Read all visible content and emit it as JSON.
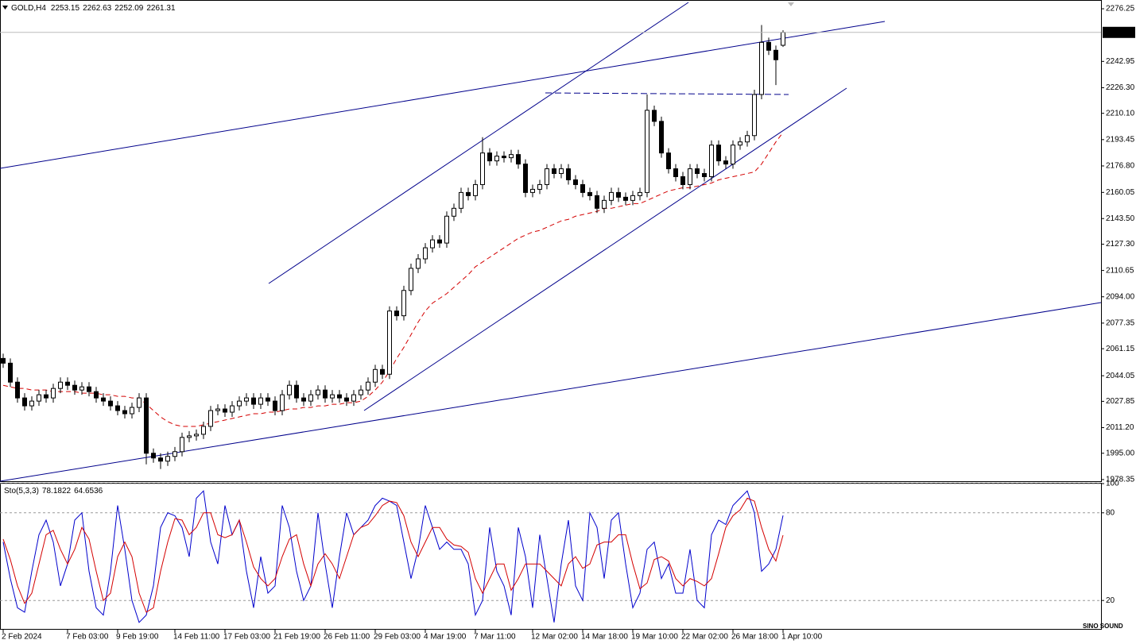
{
  "chart_data": [
    {
      "type": "candlestick",
      "title": "GOLD,H4",
      "categories": [
        "2 Feb 2024",
        null,
        null,
        null,
        null,
        null,
        null,
        null,
        null,
        "7 Feb 03:00",
        null,
        null,
        null,
        null,
        null,
        null,
        "9 Feb 19:00",
        null,
        null,
        null,
        null,
        null,
        null,
        null,
        "14 Feb 11:00",
        null,
        null,
        null,
        null,
        null,
        null,
        "17 Feb 03:00",
        null,
        null,
        null,
        null,
        null,
        null,
        "21 Feb 19:00",
        null,
        null,
        null,
        null,
        null,
        null,
        "26 Feb 11:00",
        null,
        null,
        null,
        null,
        null,
        null,
        "29 Feb 03:00",
        null,
        null,
        null,
        null,
        null,
        null,
        "4 Mar 19:00",
        null,
        null,
        null,
        null,
        null,
        null,
        "7 Mar 11:00",
        null,
        null,
        null,
        null,
        null,
        null,
        null,
        "12 Mar 02:00",
        null,
        null,
        null,
        null,
        null,
        null,
        "14 Mar 18:00",
        null,
        null,
        null,
        null,
        null,
        null,
        "19 Mar 10:00",
        null,
        null,
        null,
        null,
        null,
        null,
        "22 Mar 02:00",
        null,
        null,
        null,
        null,
        null,
        null,
        "26 Mar 18:00",
        null,
        null,
        null,
        null,
        null,
        null,
        "1 Apr 10:00"
      ],
      "open": [
        2055,
        2052,
        2040,
        2030,
        2025,
        2028,
        2032,
        2030,
        2036,
        2040,
        2038,
        2035,
        2037,
        2034,
        2030,
        2028,
        2025,
        2022,
        2020,
        2024,
        2030,
        1995,
        1992,
        1990,
        1993,
        1996,
        2005,
        2006,
        2007,
        2012,
        2022,
        2023,
        2021,
        2025,
        2028,
        2030,
        2026,
        2030,
        2028,
        2022,
        2032,
        2038,
        2030,
        2028,
        2032,
        2035,
        2030,
        2032,
        2030,
        2028,
        2032,
        2035,
        2040,
        2048,
        2045,
        2085,
        2082,
        2098,
        2112,
        2118,
        2125,
        2130,
        2128,
        2145,
        2150,
        2160,
        2158,
        2165,
        2185,
        2180,
        2183,
        2182,
        2184,
        2178,
        2160,
        2162,
        2165,
        2175,
        2172,
        2175,
        2168,
        2165,
        2160,
        2158,
        2150,
        2155,
        2160,
        2157,
        2155,
        2158,
        2160,
        2212,
        2205,
        2185,
        2175,
        2170,
        2165,
        2175,
        2172,
        2170,
        2190,
        2180,
        2178,
        2190,
        2192,
        2196,
        2222,
        2255,
        2250,
        2253.15
      ],
      "high": [
        2058,
        2055,
        2043,
        2033,
        2031,
        2035,
        2035,
        2039,
        2043,
        2043,
        2041,
        2040,
        2040,
        2037,
        2033,
        2031,
        2028,
        2025,
        2027,
        2033,
        2033,
        1998,
        1995,
        1996,
        1999,
        2008,
        2009,
        2010,
        2015,
        2025,
        2026,
        2026,
        2028,
        2031,
        2033,
        2033,
        2033,
        2033,
        2031,
        2035,
        2041,
        2041,
        2033,
        2035,
        2038,
        2038,
        2035,
        2035,
        2033,
        2035,
        2038,
        2043,
        2051,
        2051,
        2088,
        2088,
        2101,
        2115,
        2121,
        2128,
        2133,
        2133,
        2148,
        2153,
        2163,
        2163,
        2168,
        2195,
        2188,
        2186,
        2186,
        2187,
        2187,
        2181,
        2165,
        2168,
        2178,
        2178,
        2178,
        2178,
        2171,
        2168,
        2163,
        2161,
        2158,
        2163,
        2163,
        2160,
        2161,
        2163,
        2222,
        2215,
        2208,
        2188,
        2178,
        2173,
        2178,
        2178,
        2175,
        2193,
        2193,
        2183,
        2193,
        2195,
        2199,
        2225,
        2266,
        2258,
        2253,
        2262.63
      ],
      "low": [
        2049,
        2037,
        2027,
        2022,
        2022,
        2025,
        2027,
        2027,
        2033,
        2035,
        2032,
        2032,
        2031,
        2027,
        2025,
        2022,
        2019,
        2017,
        2017,
        2021,
        1988,
        1989,
        1985,
        1987,
        1990,
        1993,
        2002,
        2003,
        2004,
        2009,
        2019,
        2018,
        2018,
        2022,
        2025,
        2023,
        2023,
        2025,
        2019,
        2019,
        2029,
        2027,
        2025,
        2025,
        2029,
        2027,
        2027,
        2027,
        2025,
        2025,
        2029,
        2032,
        2037,
        2042,
        2042,
        2079,
        2079,
        2095,
        2109,
        2115,
        2122,
        2125,
        2125,
        2142,
        2147,
        2155,
        2155,
        2162,
        2177,
        2177,
        2179,
        2179,
        2175,
        2157,
        2157,
        2159,
        2162,
        2169,
        2169,
        2165,
        2162,
        2157,
        2155,
        2147,
        2147,
        2152,
        2154,
        2152,
        2152,
        2155,
        2157,
        2202,
        2182,
        2172,
        2167,
        2162,
        2162,
        2169,
        2167,
        2167,
        2177,
        2175,
        2175,
        2187,
        2189,
        2193,
        2219,
        2247,
        2228,
        2252.09
      ],
      "close": [
        2052,
        2040,
        2030,
        2025,
        2028,
        2032,
        2030,
        2036,
        2040,
        2038,
        2035,
        2037,
        2034,
        2030,
        2028,
        2025,
        2022,
        2020,
        2024,
        2030,
        1995,
        1992,
        1990,
        1993,
        1996,
        2005,
        2006,
        2007,
        2012,
        2022,
        2023,
        2021,
        2025,
        2028,
        2030,
        2026,
        2030,
        2028,
        2022,
        2032,
        2038,
        2030,
        2028,
        2032,
        2035,
        2030,
        2032,
        2030,
        2028,
        2032,
        2035,
        2040,
        2048,
        2045,
        2085,
        2082,
        2098,
        2112,
        2118,
        2125,
        2130,
        2128,
        2145,
        2150,
        2160,
        2158,
        2165,
        2185,
        2180,
        2183,
        2182,
        2184,
        2178,
        2160,
        2162,
        2165,
        2175,
        2172,
        2175,
        2168,
        2165,
        2160,
        2158,
        2150,
        2155,
        2160,
        2157,
        2155,
        2158,
        2160,
        2212,
        2205,
        2185,
        2175,
        2170,
        2165,
        2175,
        2172,
        2170,
        2190,
        2180,
        2178,
        2190,
        2192,
        2196,
        2222,
        2255,
        2250,
        2244,
        2261.31
      ],
      "ma": {
        "color": "#d40000",
        "values": [
          2038,
          2037,
          2036,
          2036,
          2035,
          2035,
          2035,
          2034,
          2034,
          2034,
          2034,
          2033,
          2033,
          2033,
          2032,
          2032,
          2031,
          2031,
          2030,
          2030,
          2026,
          2022,
          2018,
          2015,
          2013,
          2012,
          2012,
          2012,
          2013,
          2014,
          2015,
          2016,
          2017,
          2018,
          2019,
          2020,
          2020,
          2021,
          2021,
          2022,
          2023,
          2023,
          2024,
          2024,
          2025,
          2025,
          2026,
          2026,
          2027,
          2027,
          2028,
          2031,
          2035,
          2040,
          2047,
          2055,
          2062,
          2070,
          2078,
          2085,
          2090,
          2093,
          2096,
          2100,
          2104,
          2108,
          2113,
          2116,
          2119,
          2122,
          2125,
          2128,
          2131,
          2133,
          2135,
          2136,
          2138,
          2140,
          2142,
          2143,
          2145,
          2146,
          2147,
          2148,
          2150,
          2150,
          2151,
          2152,
          2153,
          2153,
          2155,
          2157,
          2159,
          2161,
          2162,
          2163,
          2163,
          2164,
          2165,
          2166,
          2168,
          2169,
          2170,
          2171,
          2172,
          2173,
          2178,
          2185,
          2192,
          2198
        ]
      },
      "ylim": [
        1976.8,
        2281.8
      ],
      "yticks": [
        1978.35,
        {
          "value": 1995,
          "label": "1995.00"
        },
        {
          "value": 2011.2,
          "label": "2011.20"
        },
        2027.85,
        2044.05,
        2061.15,
        2077.35,
        {
          "value": 2094,
          "label": "2094.00"
        },
        2110.65,
        {
          "value": 2127.3,
          "label": "2127.30"
        },
        {
          "value": 2143.5,
          "label": "2143.50"
        },
        2160.05,
        {
          "value": 2176.8,
          "label": "2176.80"
        },
        2193.45,
        {
          "value": 2210.1,
          "label": "2210.10"
        },
        {
          "value": 2226.3,
          "label": "2226.30"
        },
        2242.95,
        2276.25
      ],
      "grid": false
    },
    {
      "type": "line",
      "title": "Sto(5,3,3)",
      "series": [
        {
          "color": "#0000cc",
          "values": [
            60,
            35,
            15,
            12,
            40,
            65,
            75,
            60,
            30,
            45,
            75,
            80,
            40,
            15,
            10,
            40,
            85,
            55,
            20,
            5,
            10,
            30,
            70,
            80,
            78,
            70,
            50,
            90,
            95,
            60,
            45,
            85,
            65,
            75,
            40,
            15,
            50,
            25,
            30,
            85,
            70,
            40,
            20,
            30,
            80,
            45,
            15,
            50,
            80,
            65,
            70,
            75,
            85,
            90,
            88,
            85,
            60,
            35,
            55,
            85,
            70,
            55,
            60,
            55,
            55,
            45,
            10,
            20,
            70,
            40,
            30,
            10,
            70,
            50,
            15,
            65,
            35,
            5,
            45,
            75,
            30,
            20,
            80,
            70,
            35,
            75,
            80,
            45,
            15,
            25,
            55,
            60,
            35,
            45,
            25,
            25,
            55,
            20,
            15,
            65,
            75,
            72,
            85,
            90,
            95,
            80,
            40,
            45,
            55,
            78.1822
          ]
        },
        {
          "color": "#d40000",
          "values": [
            62,
            48,
            30,
            18,
            25,
            45,
            65,
            68,
            55,
            45,
            55,
            70,
            62,
            40,
            20,
            25,
            50,
            60,
            50,
            25,
            12,
            15,
            40,
            60,
            76,
            75,
            65,
            70,
            80,
            80,
            65,
            63,
            65,
            75,
            60,
            43,
            35,
            30,
            35,
            50,
            62,
            65,
            45,
            30,
            45,
            52,
            45,
            35,
            50,
            65,
            70,
            72,
            78,
            85,
            88,
            87,
            78,
            60,
            50,
            60,
            70,
            70,
            62,
            58,
            57,
            53,
            35,
            25,
            35,
            45,
            45,
            27,
            35,
            45,
            45,
            45,
            40,
            35,
            30,
            45,
            50,
            42,
            45,
            58,
            60,
            60,
            65,
            65,
            45,
            28,
            32,
            48,
            50,
            47,
            35,
            30,
            35,
            33,
            30,
            35,
            52,
            70,
            78,
            82,
            90,
            88,
            70,
            55,
            47,
            64.6536
          ]
        }
      ],
      "ylim": [
        0,
        100
      ],
      "yticks": [
        20,
        80,
        100
      ],
      "grid": true
    }
  ],
  "watermark": "SINO SOUND"
}
